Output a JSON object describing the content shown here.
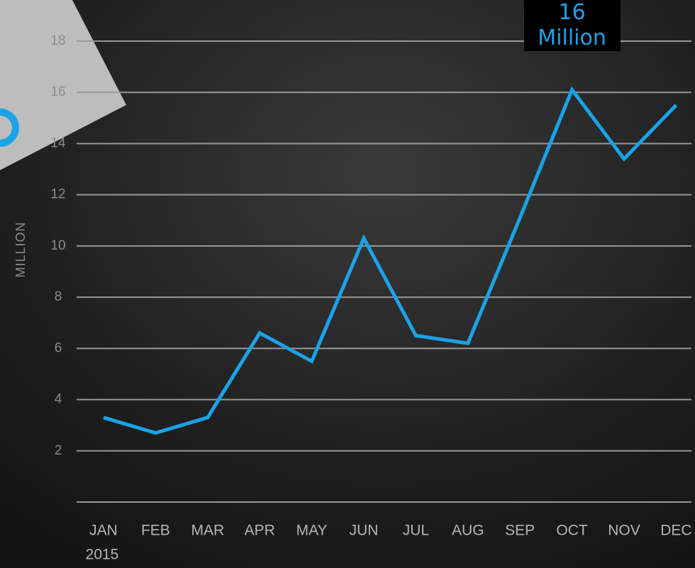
{
  "chart_data": {
    "type": "line",
    "y_label": "MILLION",
    "categories": [
      "JAN",
      "FEB",
      "MAR",
      "APR",
      "MAY",
      "JUN",
      "JUL",
      "AUG",
      "SEP",
      "OCT",
      "NOV",
      "DEC"
    ],
    "year": "2015",
    "values": [
      3.3,
      2.7,
      3.3,
      6.6,
      5.5,
      10.3,
      6.5,
      6.2,
      11.1,
      16.1,
      13.4,
      15.5
    ],
    "color": "#1aa3e8",
    "ylim": [
      0,
      18
    ],
    "yticks": [
      2,
      4,
      6,
      8,
      10,
      12,
      14,
      16,
      18
    ],
    "grid": true,
    "annotation": "16 Million"
  }
}
